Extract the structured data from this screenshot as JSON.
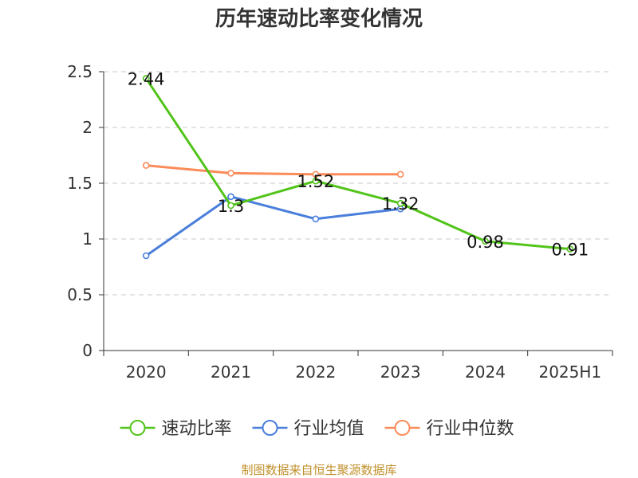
{
  "chart_data": {
    "type": "line",
    "title": "历年速动比率变化情况",
    "categories": [
      "2020",
      "2021",
      "2022",
      "2023",
      "2024",
      "2025H1"
    ],
    "ylim": [
      0,
      2.5
    ],
    "yticks": [
      "0",
      "0.5",
      "1",
      "1.5",
      "2",
      "2.5"
    ],
    "grid": true,
    "legend_position": "bottom",
    "series": [
      {
        "name": "速动比率",
        "color": "#52c41a",
        "values": [
          2.44,
          1.3,
          1.52,
          1.32,
          0.98,
          0.91
        ],
        "labels": [
          "2.44",
          "1.3",
          "1.52",
          "1.32",
          "0.98",
          "0.91"
        ]
      },
      {
        "name": "行业均值",
        "color": "#4a7fdb",
        "values": [
          0.85,
          1.38,
          1.18,
          1.27,
          null,
          null
        ]
      },
      {
        "name": "行业中位数",
        "color": "#fa8c5a",
        "values": [
          1.66,
          1.59,
          1.58,
          1.58,
          null,
          null
        ]
      }
    ]
  },
  "source": "制图数据来自恒生聚源数据库"
}
